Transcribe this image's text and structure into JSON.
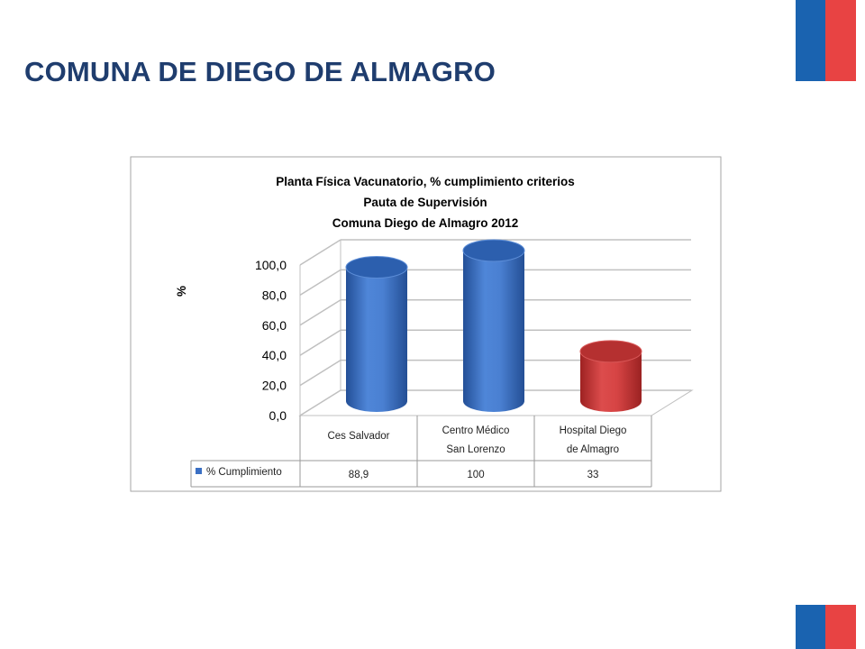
{
  "slide": {
    "title": "COMUNA DE DIEGO DE ALMAGRO"
  },
  "flag": {
    "blue": "#1a63b0",
    "red": "#e84343"
  },
  "chart_data": {
    "type": "bar",
    "title_lines": [
      "Planta Física Vacunatorio, % cumplimiento criterios",
      "Pauta de Supervisión",
      "Comuna Diego de Almagro 2012"
    ],
    "ylabel": "%",
    "ylim": [
      0,
      100
    ],
    "y_ticks": [
      "100,0",
      "80,0",
      "60,0",
      "40,0",
      "20,0",
      "0,0"
    ],
    "categories": [
      [
        "Ces Salvador"
      ],
      [
        "Centro Médico",
        "San Lorenzo"
      ],
      [
        "Hospital Diego",
        "de Almagro"
      ]
    ],
    "series": [
      {
        "name": "% Cumplimiento",
        "values": [
          88.9,
          100,
          33
        ],
        "value_labels": [
          "88,9",
          "100",
          "33"
        ],
        "colors": [
          "#3a6fc4",
          "#3a6fc4",
          "#c83232"
        ]
      }
    ],
    "legend_color": "#3a6fc4",
    "grid": true,
    "legend": "data-table"
  }
}
